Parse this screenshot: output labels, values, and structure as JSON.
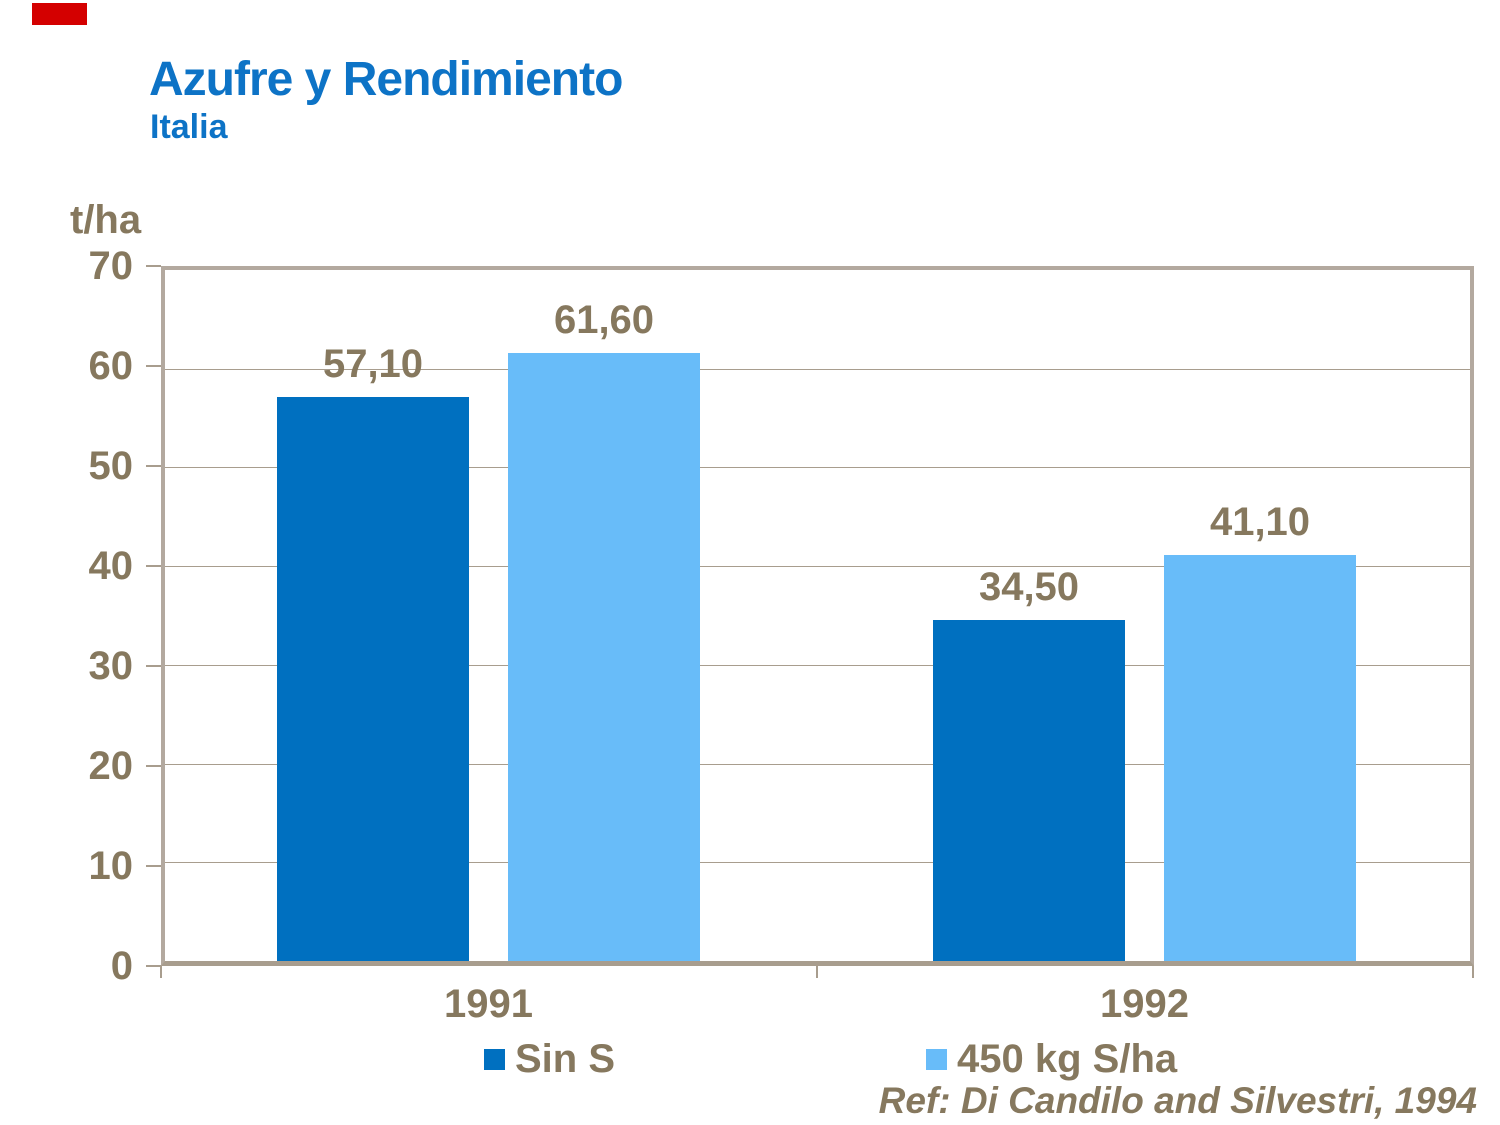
{
  "page": {
    "background": "#ffffff"
  },
  "top_left_marker": {
    "color": "#d40000"
  },
  "title": {
    "text": "Azufre y Rendimiento",
    "subtitle": "Italia",
    "color": "#0d73c6"
  },
  "chart_data": {
    "type": "bar",
    "title": "Azufre y Rendimiento",
    "subtitle": "Italia",
    "ylabel": "t/ha",
    "xlabel": "",
    "categories": [
      "1991",
      "1992"
    ],
    "series": [
      {
        "name": "Sin S",
        "color": "#0070C0",
        "values": [
          57.1,
          34.5
        ],
        "labels": [
          "57,10",
          "34,50"
        ]
      },
      {
        "name": "450 kg S/ha",
        "color": "#68BCF9",
        "values": [
          61.6,
          41.1
        ],
        "labels": [
          "61,60",
          "41,10"
        ]
      }
    ],
    "ylim": [
      0,
      70
    ],
    "yticks": [
      0,
      10,
      20,
      30,
      40,
      50,
      60,
      70
    ],
    "grid": true,
    "gridline_color": "#a89d8e",
    "border_color": "#b3a99f",
    "tick_label_color": "#86785E",
    "legend_position": "bottom",
    "decimal_separator": ","
  },
  "footer": {
    "reference": "Ref: Di Candilo and Silvestri, 1994"
  }
}
